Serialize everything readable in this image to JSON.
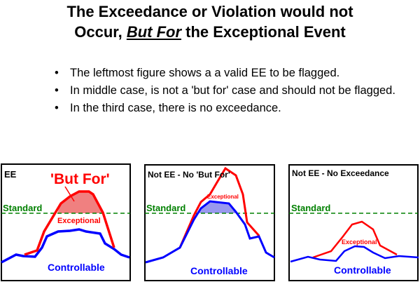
{
  "title": {
    "line1": "The Exceedance or Violation would not",
    "line2_pre": "Occur, ",
    "line2_em": "But For",
    "line2_post": " the Exceptional Event"
  },
  "bullets": [
    "The leftmost figure shows a a valid EE to be flagged.",
    "In middle case, is not a 'but for' case and should not be flagged.",
    "In the third case, there is no exceedance."
  ],
  "bullet_glyph": "•",
  "panels": [
    {
      "heading": "EE",
      "callout": "'But For'",
      "standard": "Standard",
      "exceptional": "Exceptional",
      "controllable": "Controllable"
    },
    {
      "heading": "Not EE - No 'But For'",
      "standard": "Standard",
      "exceptional": "Exceptional",
      "controllable": "Controllable"
    },
    {
      "heading": "Not EE - No Exceedance",
      "standard": "Standard",
      "exceptional": "Exceptional",
      "controllable": "Controllable"
    }
  ],
  "colors": {
    "exceptional": "#ff0000",
    "controllable": "#0000ff",
    "standard": "#008000",
    "but_for_fill": "#f08080",
    "blue_fill": "#9999ee"
  }
}
